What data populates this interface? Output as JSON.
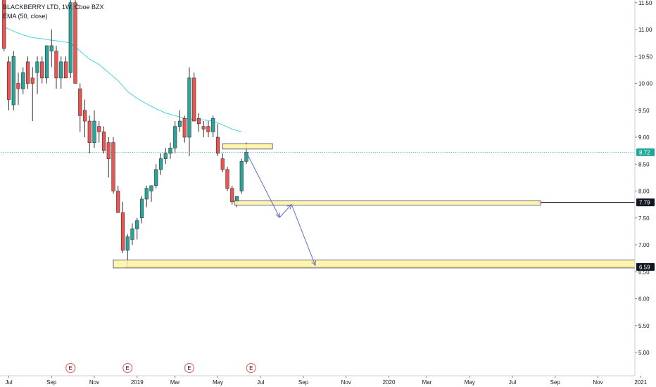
{
  "legend": {
    "title": "BLACKBERRY LTD, 1W, Cboe BZX",
    "indicator": "EMA (50, close)"
  },
  "colors": {
    "up": "#26a69a",
    "down": "#ef5350",
    "ema": "#4dd0e1",
    "zone_fill": "#fff59d",
    "zone_stroke": "#3d3d7a",
    "arrow": "#5b6fc2",
    "current_price_line": "#26a69a",
    "grid_axis": "#cccccc",
    "earnings": "#ef5350"
  },
  "chart_data": {
    "type": "candlestick",
    "title": "BLACKBERRY LTD, 1W, Cboe BZX",
    "ylim": [
      4.6,
      11.62
    ],
    "y_ticks": [
      "11.50",
      "11.00",
      "10.50",
      "10.00",
      "9.50",
      "9.00",
      "8.50",
      "8.00",
      "7.50",
      "7.00",
      "6.50",
      "6.00",
      "5.50",
      "5.00"
    ],
    "x_ticks": [
      "Jul",
      "Sep",
      "Nov",
      "2019",
      "Mar",
      "May",
      "Jul",
      "Sep",
      "Nov",
      "2020",
      "Mar",
      "May",
      "Jul",
      "Sep",
      "Nov",
      "2021"
    ],
    "x_tick_weeks": [
      0,
      9,
      18,
      27,
      35,
      44,
      53,
      62,
      71,
      80,
      88,
      97,
      106,
      115,
      124,
      133
    ],
    "grid": false,
    "candles": [
      {
        "w": -1,
        "o": 11.6,
        "h": 11.7,
        "l": 10.6,
        "c": 10.65
      },
      {
        "w": 0,
        "o": 10.4,
        "h": 10.5,
        "l": 9.5,
        "c": 9.7
      },
      {
        "w": 1,
        "o": 9.6,
        "h": 10.6,
        "l": 9.5,
        "c": 10.5
      },
      {
        "w": 2,
        "o": 10.0,
        "h": 10.2,
        "l": 9.6,
        "c": 9.9
      },
      {
        "w": 3,
        "o": 9.9,
        "h": 10.3,
        "l": 9.8,
        "c": 10.2
      },
      {
        "w": 4,
        "o": 10.4,
        "h": 10.5,
        "l": 9.9,
        "c": 10.0
      },
      {
        "w": 5,
        "o": 10.1,
        "h": 10.3,
        "l": 9.3,
        "c": 10.0
      },
      {
        "w": 6,
        "o": 10.2,
        "h": 10.5,
        "l": 9.8,
        "c": 10.4
      },
      {
        "w": 7,
        "o": 10.4,
        "h": 10.5,
        "l": 10.0,
        "c": 10.1
      },
      {
        "w": 8,
        "o": 10.1,
        "h": 10.7,
        "l": 10.0,
        "c": 10.7
      },
      {
        "w": 9,
        "o": 10.6,
        "h": 11.0,
        "l": 10.3,
        "c": 10.7
      },
      {
        "w": 10,
        "o": 10.6,
        "h": 10.7,
        "l": 9.9,
        "c": 10.1
      },
      {
        "w": 11,
        "o": 10.1,
        "h": 10.5,
        "l": 9.9,
        "c": 10.4
      },
      {
        "w": 12,
        "o": 10.4,
        "h": 10.5,
        "l": 10.1,
        "c": 10.1
      },
      {
        "w": 13,
        "o": 10.2,
        "h": 11.6,
        "l": 10.1,
        "c": 11.5
      },
      {
        "w": 14,
        "o": 11.5,
        "h": 11.6,
        "l": 10.0,
        "c": 10.0
      },
      {
        "w": 15,
        "o": 9.9,
        "h": 10.0,
        "l": 9.1,
        "c": 9.4
      },
      {
        "w": 16,
        "o": 9.5,
        "h": 9.7,
        "l": 9.0,
        "c": 9.3
      },
      {
        "w": 17,
        "o": 9.3,
        "h": 9.4,
        "l": 8.7,
        "c": 8.9
      },
      {
        "w": 18,
        "o": 8.9,
        "h": 9.5,
        "l": 8.8,
        "c": 9.3
      },
      {
        "w": 19,
        "o": 9.2,
        "h": 9.3,
        "l": 8.9,
        "c": 9.1
      },
      {
        "w": 20,
        "o": 9.1,
        "h": 9.2,
        "l": 8.7,
        "c": 8.75
      },
      {
        "w": 21,
        "o": 8.9,
        "h": 9.0,
        "l": 8.25,
        "c": 8.6
      },
      {
        "w": 22,
        "o": 8.9,
        "h": 9.0,
        "l": 7.95,
        "c": 8.0
      },
      {
        "w": 23,
        "o": 8.0,
        "h": 8.1,
        "l": 7.6,
        "c": 7.6
      },
      {
        "w": 24,
        "o": 7.6,
        "h": 7.8,
        "l": 6.85,
        "c": 6.9
      },
      {
        "w": 25,
        "o": 6.9,
        "h": 7.2,
        "l": 6.59,
        "c": 7.15
      },
      {
        "w": 26,
        "o": 7.1,
        "h": 7.4,
        "l": 7.0,
        "c": 7.3
      },
      {
        "w": 27,
        "o": 7.3,
        "h": 7.5,
        "l": 7.1,
        "c": 7.45
      },
      {
        "w": 28,
        "o": 7.5,
        "h": 7.9,
        "l": 7.4,
        "c": 7.85
      },
      {
        "w": 29,
        "o": 7.85,
        "h": 8.1,
        "l": 7.7,
        "c": 8.05
      },
      {
        "w": 30,
        "o": 8.0,
        "h": 8.1,
        "l": 7.8,
        "c": 8.1
      },
      {
        "w": 31,
        "o": 8.1,
        "h": 8.5,
        "l": 8.05,
        "c": 8.4
      },
      {
        "w": 32,
        "o": 8.4,
        "h": 8.7,
        "l": 8.3,
        "c": 8.6
      },
      {
        "w": 33,
        "o": 8.6,
        "h": 8.8,
        "l": 8.5,
        "c": 8.7
      },
      {
        "w": 34,
        "o": 8.7,
        "h": 8.9,
        "l": 8.6,
        "c": 8.8
      },
      {
        "w": 35,
        "o": 8.8,
        "h": 9.3,
        "l": 8.7,
        "c": 9.2
      },
      {
        "w": 36,
        "o": 9.2,
        "h": 9.5,
        "l": 9.1,
        "c": 9.3
      },
      {
        "w": 37,
        "o": 9.35,
        "h": 9.4,
        "l": 8.9,
        "c": 9.0
      },
      {
        "w": 38,
        "o": 9.0,
        "h": 10.3,
        "l": 8.65,
        "c": 10.1
      },
      {
        "w": 39,
        "o": 10.1,
        "h": 10.2,
        "l": 9.3,
        "c": 9.3
      },
      {
        "w": 40,
        "o": 9.35,
        "h": 9.45,
        "l": 9.1,
        "c": 9.25
      },
      {
        "w": 41,
        "o": 9.2,
        "h": 9.3,
        "l": 9.0,
        "c": 9.15
      },
      {
        "w": 42,
        "o": 9.2,
        "h": 9.3,
        "l": 9.0,
        "c": 9.1
      },
      {
        "w": 43,
        "o": 9.1,
        "h": 9.4,
        "l": 9.0,
        "c": 9.35
      },
      {
        "w": 44,
        "o": 9.0,
        "h": 9.25,
        "l": 8.65,
        "c": 8.7
      },
      {
        "w": 45,
        "o": 8.6,
        "h": 8.7,
        "l": 8.35,
        "c": 8.4
      },
      {
        "w": 46,
        "o": 8.4,
        "h": 8.45,
        "l": 8.0,
        "c": 8.05
      },
      {
        "w": 47,
        "o": 8.05,
        "h": 8.1,
        "l": 7.75,
        "c": 7.8
      },
      {
        "w": 48,
        "o": 7.8,
        "h": 7.9,
        "l": 7.7,
        "c": 7.9
      },
      {
        "w": 49,
        "o": 8.0,
        "h": 8.6,
        "l": 7.95,
        "c": 8.55
      },
      {
        "w": 50,
        "o": 8.55,
        "h": 8.9,
        "l": 8.5,
        "c": 8.72
      }
    ],
    "ema": [
      {
        "w": -1,
        "v": 11.05
      },
      {
        "w": 1,
        "v": 10.97
      },
      {
        "w": 3,
        "v": 10.9
      },
      {
        "w": 5,
        "v": 10.85
      },
      {
        "w": 7,
        "v": 10.83
      },
      {
        "w": 9,
        "v": 10.8
      },
      {
        "w": 11,
        "v": 10.78
      },
      {
        "w": 13,
        "v": 10.75
      },
      {
        "w": 15,
        "v": 10.6
      },
      {
        "w": 17,
        "v": 10.45
      },
      {
        "w": 19,
        "v": 10.35
      },
      {
        "w": 21,
        "v": 10.2
      },
      {
        "w": 23,
        "v": 10.05
      },
      {
        "w": 25,
        "v": 9.85
      },
      {
        "w": 27,
        "v": 9.72
      },
      {
        "w": 29,
        "v": 9.62
      },
      {
        "w": 31,
        "v": 9.53
      },
      {
        "w": 33,
        "v": 9.45
      },
      {
        "w": 35,
        "v": 9.4
      },
      {
        "w": 37,
        "v": 9.35
      },
      {
        "w": 39,
        "v": 9.33
      },
      {
        "w": 41,
        "v": 9.32
      },
      {
        "w": 43,
        "v": 9.3
      },
      {
        "w": 45,
        "v": 9.23
      },
      {
        "w": 47,
        "v": 9.15
      },
      {
        "w": 49,
        "v": 9.1
      }
    ],
    "zones": [
      {
        "w1": 45,
        "w2": 55.5,
        "y1": 8.78,
        "y2": 8.88
      },
      {
        "w1": 47.5,
        "w2": 112,
        "y1": 7.74,
        "y2": 7.82
      },
      {
        "w1": 22,
        "w2": 138,
        "y1": 6.57,
        "y2": 6.72
      }
    ],
    "arrows": [
      {
        "from_w": 50,
        "from_v": 8.72,
        "to_w": 57,
        "to_v": 7.51
      },
      {
        "from_w": 57,
        "from_v": 7.51,
        "to_w": 59.5,
        "to_v": 7.75
      },
      {
        "from_w": 59.5,
        "from_v": 7.75,
        "to_w": 64.5,
        "to_v": 6.62
      }
    ],
    "horizontal_lines": [
      {
        "v": 7.79,
        "from_w": 112,
        "style": "solid",
        "color": "#000000"
      },
      {
        "v": 8.72,
        "from_w": -1,
        "style": "dotted",
        "color": "#26a69a"
      },
      {
        "v": 6.59,
        "from_w": 25,
        "style": "solid",
        "color": "#000000"
      }
    ],
    "price_labels": [
      {
        "v": 8.72,
        "text": "8.72",
        "bg": "#26a69a",
        "fg": "#ffffff"
      },
      {
        "v": 7.79,
        "text": "7.79",
        "bg": "#131722",
        "fg": "#ffffff"
      },
      {
        "v": 6.59,
        "text": "6.59",
        "bg": "#131722",
        "fg": "#ffffff"
      }
    ],
    "earnings_markers": [
      {
        "w": 13,
        "text": "E"
      },
      {
        "w": 25,
        "text": "E"
      },
      {
        "w": 38,
        "text": "E"
      },
      {
        "w": 51,
        "text": "E"
      }
    ]
  }
}
